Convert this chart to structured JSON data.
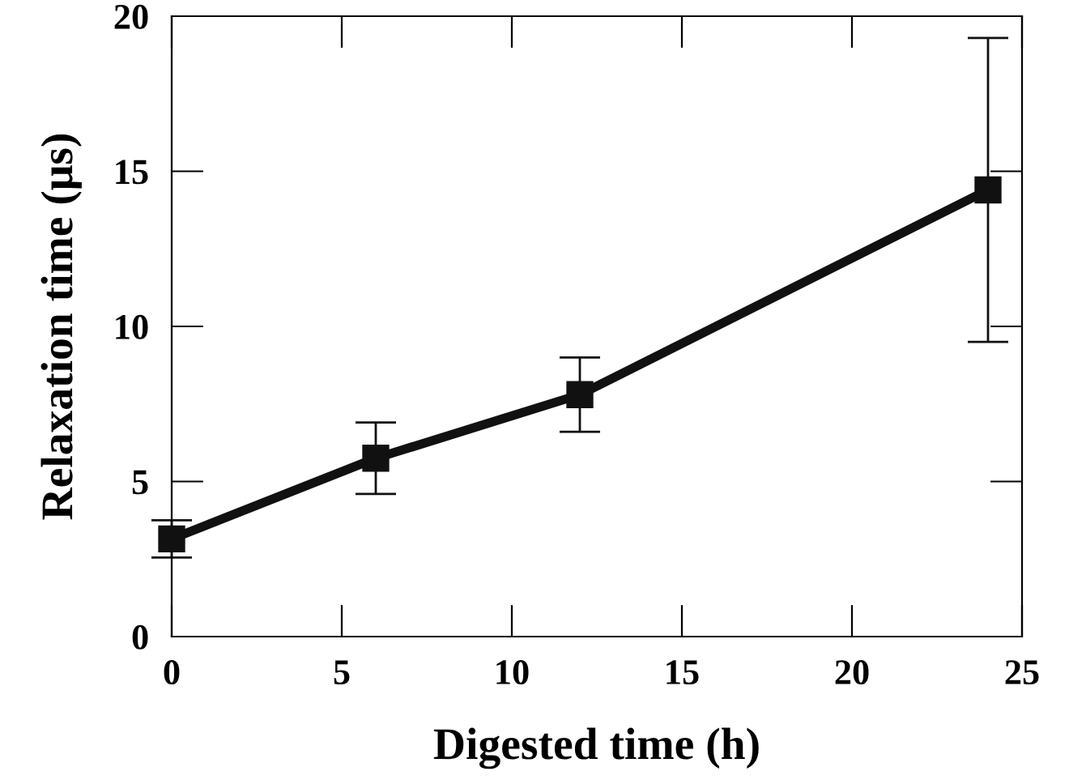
{
  "chart_data": {
    "type": "line",
    "xlabel": "Digested time (h)",
    "ylabel": "Relaxation time (μs)",
    "x": [
      0,
      6,
      12,
      24
    ],
    "series": [
      {
        "color": "#111111",
        "values": [
          3.15,
          5.75,
          7.8,
          14.4
        ],
        "errors": [
          0.6,
          1.15,
          1.2,
          4.9
        ]
      }
    ],
    "xlim": [
      0,
      25
    ],
    "xticks": [
      0,
      5,
      10,
      15,
      20,
      25
    ],
    "ylim": [
      0,
      20
    ],
    "yticks": [
      0,
      5,
      10,
      15,
      20
    ],
    "grid": false,
    "marker": "square",
    "line_style": "solid"
  }
}
